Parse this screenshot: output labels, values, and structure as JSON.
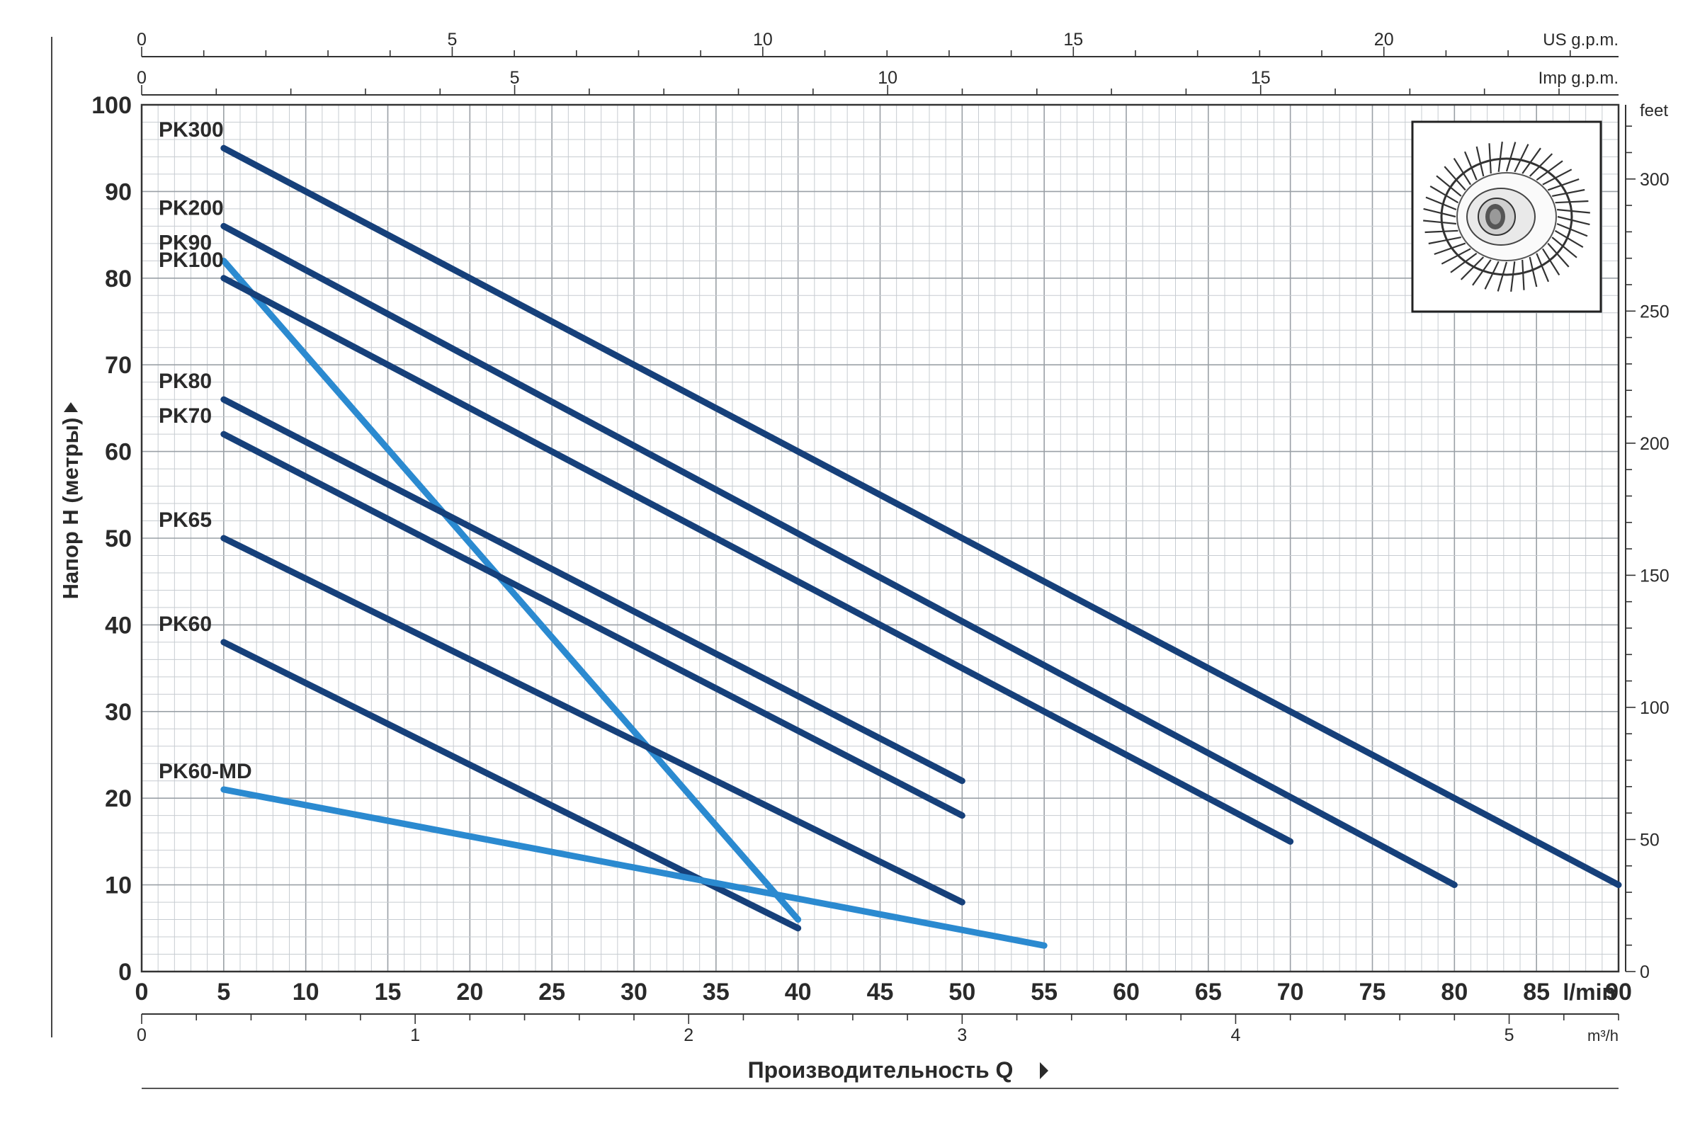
{
  "chart_data": {
    "type": "line",
    "ylabel": "Напор H (метры)",
    "xlabel": "Производительность Q",
    "x_unit": "l/min",
    "xlim": [
      0,
      90
    ],
    "ylim": [
      0,
      100
    ],
    "x_ticks": [
      0,
      5,
      10,
      15,
      20,
      25,
      30,
      35,
      40,
      45,
      50,
      55,
      60,
      65,
      70,
      75,
      80,
      85,
      90
    ],
    "y_ticks": [
      0,
      10,
      20,
      30,
      40,
      50,
      60,
      70,
      80,
      90,
      100
    ],
    "grid": true,
    "axes": {
      "us_gpm": {
        "unit": "US g.p.m.",
        "ticks": [
          "0",
          "5",
          "10",
          "15",
          "20"
        ],
        "values": [
          0,
          5,
          10,
          15,
          20
        ]
      },
      "imp_gpm": {
        "unit": "Imp g.p.m.",
        "ticks": [
          "0",
          "5",
          "10",
          "15"
        ],
        "values": [
          0,
          5,
          10,
          15
        ]
      },
      "feet": {
        "unit": "feet",
        "ticks": [
          "0",
          "50",
          "100",
          "150",
          "200",
          "250",
          "300"
        ],
        "values": [
          0,
          50,
          100,
          150,
          200,
          250,
          300
        ]
      },
      "m3h": {
        "unit": "m³/h",
        "ticks": [
          "0",
          "1",
          "2",
          "3",
          "4",
          "5"
        ],
        "values": [
          0,
          1,
          2,
          3,
          4,
          5
        ]
      }
    },
    "series": [
      {
        "name": "PK300",
        "color": "#16407a",
        "x": [
          5,
          90
        ],
        "y": [
          95,
          10
        ]
      },
      {
        "name": "PK200",
        "color": "#16407a",
        "x": [
          5,
          80
        ],
        "y": [
          86,
          10
        ]
      },
      {
        "name": "PK90",
        "color": "#2b8ad0",
        "x": [
          5,
          40
        ],
        "y": [
          82,
          6
        ]
      },
      {
        "name": "PK100",
        "color": "#16407a",
        "x": [
          5,
          70
        ],
        "y": [
          80,
          15
        ]
      },
      {
        "name": "PK80",
        "color": "#16407a",
        "x": [
          5,
          50
        ],
        "y": [
          66,
          22
        ]
      },
      {
        "name": "PK70",
        "color": "#16407a",
        "x": [
          5,
          50
        ],
        "y": [
          62,
          18
        ]
      },
      {
        "name": "PK65",
        "color": "#16407a",
        "x": [
          5,
          50
        ],
        "y": [
          50,
          8
        ]
      },
      {
        "name": "PK60",
        "color": "#16407a",
        "x": [
          5,
          40
        ],
        "y": [
          38,
          5
        ]
      },
      {
        "name": "PK60-MD",
        "color": "#2b8ad0",
        "x": [
          5,
          55
        ],
        "y": [
          21,
          3
        ]
      }
    ]
  },
  "inset": {
    "icon": "impeller-icon"
  }
}
